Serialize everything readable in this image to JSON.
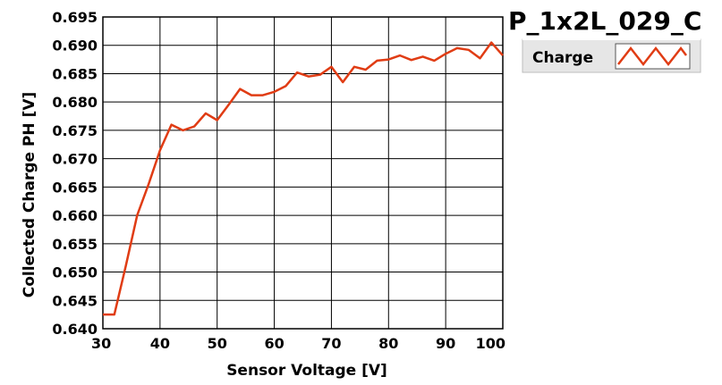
{
  "chart_data": {
    "type": "line",
    "title": "P_1x2L_029_C",
    "xlabel": "Sensor Voltage [V]",
    "ylabel": "Collected Charge PH [V]",
    "xlim": [
      30,
      100
    ],
    "ylim": [
      0.64,
      0.695
    ],
    "x_ticks": [
      "30",
      "40",
      "50",
      "60",
      "70",
      "80",
      "90",
      "100"
    ],
    "y_ticks": [
      "0.640",
      "0.645",
      "0.650",
      "0.655",
      "0.660",
      "0.665",
      "0.670",
      "0.675",
      "0.680",
      "0.685",
      "0.690",
      "0.695"
    ],
    "grid": true,
    "legend_position": "top-right",
    "series": [
      {
        "name": "Charge",
        "color": "#e03c14",
        "x": [
          30,
          32,
          34,
          36,
          38,
          40,
          42,
          44,
          46,
          48,
          50,
          52,
          54,
          56,
          58,
          60,
          62,
          64,
          66,
          68,
          70,
          72,
          74,
          76,
          78,
          80,
          82,
          84,
          86,
          88,
          90,
          92,
          94,
          96,
          98,
          100
        ],
        "y": [
          0.6425,
          0.6425,
          0.651,
          0.66,
          0.6655,
          0.6715,
          0.676,
          0.675,
          0.6757,
          0.678,
          0.6768,
          0.6795,
          0.6823,
          0.6812,
          0.6812,
          0.6818,
          0.6828,
          0.6852,
          0.6845,
          0.6848,
          0.6862,
          0.6835,
          0.6862,
          0.6857,
          0.6873,
          0.6875,
          0.6882,
          0.6874,
          0.688,
          0.6873,
          0.6885,
          0.6895,
          0.6892,
          0.6877,
          0.6905,
          0.6882
        ]
      }
    ]
  }
}
